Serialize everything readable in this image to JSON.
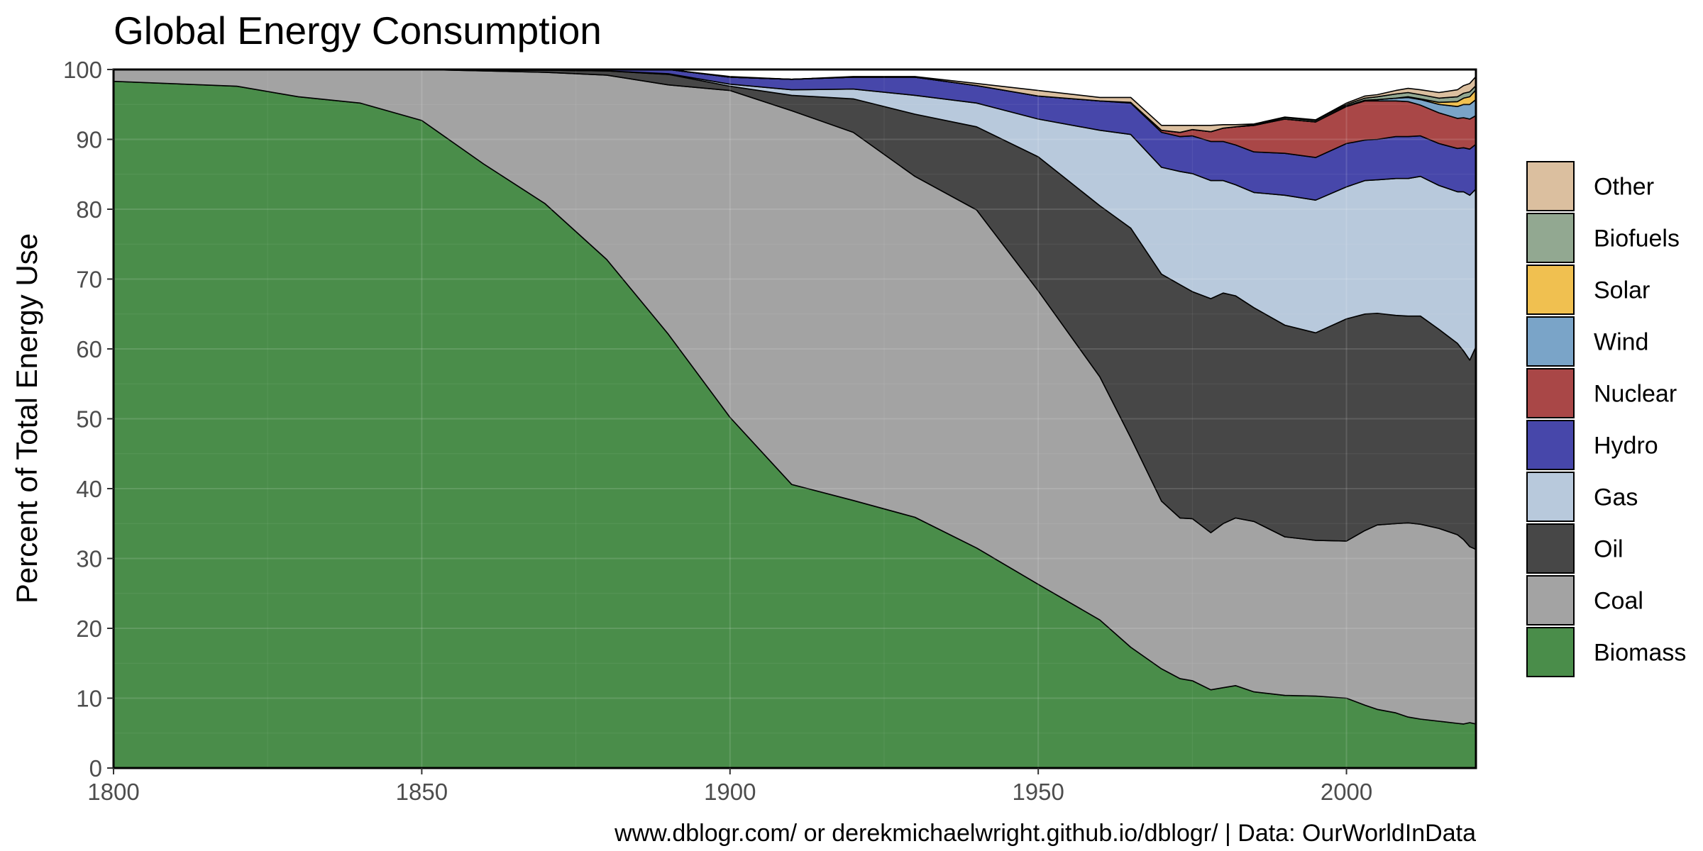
{
  "chart_data": {
    "type": "area",
    "stacked": true,
    "normalized": true,
    "title": "Global Energy Consumption",
    "xlabel": "",
    "ylabel": "Percent of Total Energy Use",
    "caption": "www.dblogr.com/ or derekmichaelwright.github.io/dblogr/ | Data: OurWorldInData",
    "xlim": [
      1800,
      2021
    ],
    "ylim": [
      0,
      100
    ],
    "x_ticks": [
      1800,
      1850,
      1900,
      1950,
      2000
    ],
    "y_ticks": [
      0,
      10,
      20,
      30,
      40,
      50,
      60,
      70,
      80,
      90,
      100
    ],
    "grid": true,
    "legend_position": "right",
    "x": [
      1800,
      1820,
      1830,
      1840,
      1850,
      1860,
      1870,
      1880,
      1890,
      1900,
      1910,
      1920,
      1930,
      1940,
      1950,
      1960,
      1965,
      1970,
      1973,
      1975,
      1978,
      1980,
      1982,
      1985,
      1990,
      1995,
      2000,
      2003,
      2005,
      2008,
      2010,
      2012,
      2015,
      2018,
      2019,
      2020,
      2021
    ],
    "series": [
      {
        "name": "Biomass",
        "color": "#4a8d4a",
        "values": [
          98.3,
          97.6,
          96.1,
          95.2,
          92.7,
          86.5,
          80.8,
          72.8,
          62.1,
          50.2,
          40.6,
          38.3,
          35.9,
          31.5,
          26.3,
          21.2,
          17.3,
          14.2,
          12.8,
          12.5,
          11.2,
          11.5,
          11.8,
          10.9,
          10.4,
          10.3,
          10.0,
          9.0,
          8.4,
          7.9,
          7.3,
          7.0,
          6.7,
          6.4,
          6.3,
          6.5,
          6.3
        ]
      },
      {
        "name": "Coal",
        "color": "#a3a3a3",
        "values": [
          1.7,
          2.4,
          3.9,
          4.8,
          7.3,
          13.3,
          18.8,
          26.4,
          35.7,
          46.8,
          53.5,
          52.7,
          48.8,
          48.4,
          42.0,
          34.8,
          30.0,
          24.0,
          23.0,
          23.2,
          22.5,
          23.5,
          24.0,
          24.4,
          22.7,
          22.3,
          22.5,
          25.0,
          26.4,
          27.1,
          27.8,
          27.9,
          27.6,
          27.0,
          26.4,
          25.2,
          25.0
        ]
      },
      {
        "name": "Oil",
        "color": "#474747",
        "values": [
          0,
          0,
          0,
          0,
          0,
          0.1,
          0.3,
          0.6,
          1.5,
          0.6,
          2.2,
          4.8,
          8.9,
          11.9,
          19.2,
          24.5,
          30.0,
          32.5,
          33.4,
          32.5,
          33.5,
          33.0,
          31.8,
          30.6,
          30.3,
          29.7,
          31.8,
          31.0,
          30.3,
          29.8,
          29.6,
          29.8,
          28.5,
          27.4,
          27.0,
          26.7,
          29.0
        ]
      },
      {
        "name": "Gas",
        "color": "#b8c9dc",
        "values": [
          0,
          0,
          0,
          0,
          0,
          0,
          0,
          0,
          0.1,
          0.3,
          0.8,
          1.4,
          2.7,
          3.4,
          5.4,
          10.8,
          13.4,
          15.3,
          16.2,
          16.9,
          16.9,
          16.1,
          15.9,
          16.5,
          18.6,
          19.0,
          18.9,
          19.1,
          19.1,
          19.6,
          19.7,
          20.0,
          20.6,
          21.7,
          22.8,
          23.6,
          22.6
        ]
      },
      {
        "name": "Hydro",
        "color": "#4747aa",
        "values": [
          0,
          0,
          0,
          0,
          0,
          0,
          0,
          0.2,
          0.6,
          1.0,
          1.5,
          1.7,
          2.6,
          2.5,
          3.3,
          4.2,
          4.5,
          5.0,
          5.0,
          5.4,
          5.6,
          5.6,
          5.7,
          5.8,
          6.0,
          6.1,
          6.2,
          5.8,
          5.8,
          6.0,
          6.0,
          5.8,
          6.0,
          6.2,
          6.3,
          6.6,
          6.4
        ]
      },
      {
        "name": "Nuclear",
        "color": "#a94747",
        "values": [
          0,
          0,
          0,
          0,
          0,
          0,
          0,
          0,
          0,
          0,
          0,
          0,
          0,
          0,
          0,
          0,
          0.1,
          0.3,
          0.6,
          0.9,
          1.4,
          1.9,
          2.6,
          3.8,
          4.9,
          5.1,
          5.3,
          5.6,
          5.5,
          5.1,
          5.0,
          4.4,
          4.4,
          4.3,
          4.3,
          4.3,
          4.1
        ]
      },
      {
        "name": "Wind",
        "color": "#7aa4c8",
        "values": [
          0,
          0,
          0,
          0,
          0,
          0,
          0,
          0,
          0,
          0,
          0,
          0,
          0,
          0,
          0,
          0,
          0,
          0,
          0,
          0,
          0,
          0,
          0,
          0,
          0,
          0,
          0.1,
          0.1,
          0.2,
          0.4,
          0.6,
          0.8,
          1.2,
          1.7,
          1.9,
          2.1,
          2.3
        ]
      },
      {
        "name": "Solar",
        "color": "#f0c050",
        "values": [
          0,
          0,
          0,
          0,
          0,
          0,
          0,
          0,
          0,
          0,
          0,
          0,
          0,
          0,
          0,
          0,
          0,
          0,
          0,
          0,
          0,
          0,
          0,
          0,
          0,
          0,
          0,
          0,
          0,
          0,
          0.1,
          0.1,
          0.3,
          0.7,
          0.9,
          1.1,
          1.4
        ]
      },
      {
        "name": "Biofuels",
        "color": "#92a891",
        "values": [
          0,
          0,
          0,
          0,
          0,
          0,
          0,
          0,
          0,
          0,
          0,
          0,
          0,
          0,
          0,
          0,
          0,
          0,
          0,
          0,
          0,
          0,
          0,
          0.1,
          0.2,
          0.2,
          0.2,
          0.3,
          0.4,
          0.6,
          0.6,
          0.6,
          0.6,
          0.7,
          0.7,
          0.7,
          0.6
        ]
      },
      {
        "name": "Other",
        "color": "#dbbf9f",
        "values": [
          0,
          0,
          0,
          0,
          0,
          0,
          0.1,
          0,
          0,
          0.1,
          0,
          0.1,
          0.1,
          0.3,
          0.8,
          0.5,
          0.7,
          0.7,
          1.0,
          0.6,
          0.9,
          0.5,
          0.3,
          0.1,
          0.1,
          0.1,
          0.2,
          0.3,
          0.3,
          0.5,
          0.6,
          0.7,
          0.8,
          1.0,
          1.1,
          1.2,
          1.3
        ]
      }
    ],
    "legend_order": [
      "Other",
      "Biofuels",
      "Solar",
      "Wind",
      "Nuclear",
      "Hydro",
      "Gas",
      "Oil",
      "Coal",
      "Biomass"
    ]
  }
}
